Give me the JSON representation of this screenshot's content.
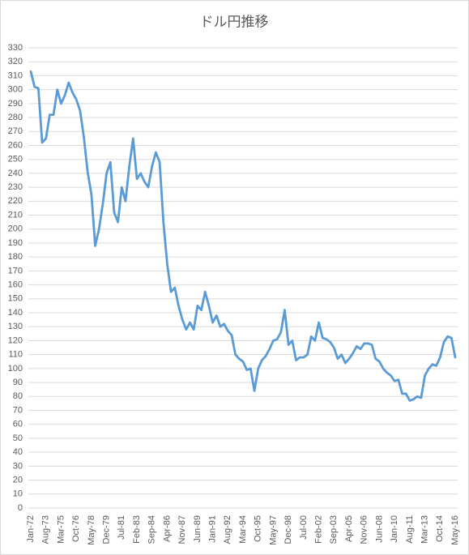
{
  "chart_data": {
    "type": "line",
    "title": "ドル円推移",
    "categories": [
      "Jan-72",
      null,
      null,
      null,
      "Aug-73",
      null,
      null,
      null,
      "Mar-75",
      null,
      null,
      null,
      "Oct-76",
      null,
      null,
      null,
      "May-78",
      null,
      null,
      null,
      "Dec-79",
      null,
      null,
      null,
      "Jul-81",
      null,
      null,
      null,
      "Feb-83",
      null,
      null,
      null,
      "Sep-84",
      null,
      null,
      null,
      "Apr-86",
      null,
      null,
      null,
      "Nov-87",
      null,
      null,
      null,
      "Jun-89",
      null,
      null,
      null,
      "Jan-91",
      null,
      null,
      null,
      "Aug-92",
      null,
      null,
      null,
      "Mar-94",
      null,
      null,
      null,
      "Oct-95",
      null,
      null,
      null,
      "May-97",
      null,
      null,
      null,
      "Dec-98",
      null,
      null,
      null,
      "Jul-00",
      null,
      null,
      null,
      "Feb-02",
      null,
      null,
      null,
      "Sep-03",
      null,
      null,
      null,
      "Apr-05",
      null,
      null,
      null,
      "Nov-06",
      null,
      null,
      null,
      "Jun-08",
      null,
      null,
      null,
      "Jan-10",
      null,
      null,
      null,
      "Aug-11",
      null,
      null,
      null,
      "Mar-13",
      null,
      null,
      null,
      "Oct-14",
      null,
      null,
      null,
      "May-16"
    ],
    "values": [
      313,
      302,
      301,
      262,
      265,
      282,
      282,
      300,
      290,
      296,
      305,
      298,
      293,
      285,
      266,
      241,
      225,
      188,
      200,
      218,
      240,
      248,
      212,
      205,
      230,
      220,
      245,
      265,
      236,
      240,
      234,
      230,
      245,
      255,
      248,
      205,
      175,
      155,
      158,
      145,
      135,
      128,
      133,
      128,
      145,
      142,
      155,
      145,
      133,
      138,
      130,
      132,
      127,
      124,
      110,
      107,
      105,
      99,
      100,
      84,
      100,
      106,
      109,
      114,
      120,
      121,
      126,
      142,
      117,
      120,
      106,
      108,
      108,
      110,
      123,
      120,
      133,
      122,
      121,
      119,
      115,
      107,
      110,
      104,
      107,
      111,
      116,
      114,
      118,
      118,
      117,
      107,
      105,
      100,
      97,
      95,
      91,
      92,
      82,
      82,
      77,
      78,
      80,
      79,
      95,
      100,
      103,
      102,
      108,
      119,
      123,
      122,
      108
    ],
    "color": "#5b9bd5",
    "ylim": [
      0,
      330
    ],
    "yticks": [
      0,
      10,
      20,
      30,
      40,
      50,
      60,
      70,
      80,
      90,
      100,
      110,
      120,
      130,
      140,
      150,
      160,
      170,
      180,
      190,
      200,
      210,
      220,
      230,
      240,
      250,
      260,
      270,
      280,
      290,
      300,
      310,
      320,
      330
    ],
    "grid": true
  }
}
